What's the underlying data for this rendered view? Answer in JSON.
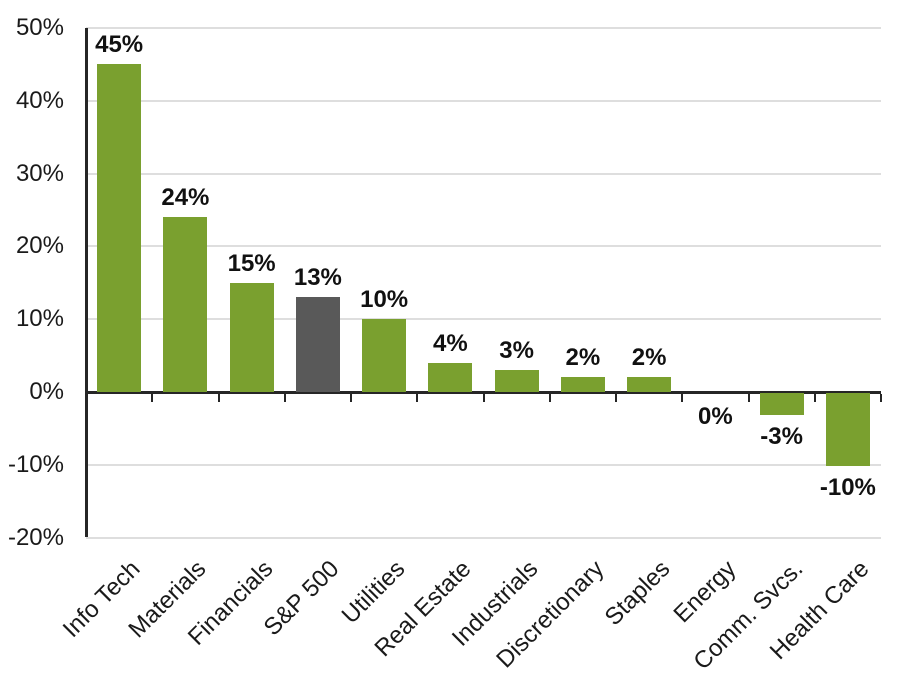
{
  "chart_data": {
    "type": "bar",
    "title": "",
    "xlabel": "",
    "ylabel": "",
    "categories": [
      "Info Tech",
      "Materials",
      "Financials",
      "S&P 500",
      "Utilities",
      "Real Estate",
      "Industrials",
      "Discretionary",
      "Staples",
      "Energy",
      "Comm. Svcs.",
      "Health Care"
    ],
    "values": [
      45,
      24,
      15,
      13,
      10,
      4,
      3,
      2,
      2,
      0,
      -3,
      -10
    ],
    "value_labels": [
      "45%",
      "24%",
      "15%",
      "13%",
      "10%",
      "4%",
      "3%",
      "2%",
      "2%",
      "0%",
      "-3%",
      "-10%"
    ],
    "highlight_category": "S&P 500",
    "highlight_index": 3,
    "ylim": [
      -20,
      50
    ],
    "ytick_values": [
      50,
      40,
      30,
      20,
      10,
      0,
      -10,
      -20
    ],
    "ytick_labels": [
      "50%",
      "40%",
      "30%",
      "20%",
      "10%",
      "0%",
      "-10%",
      "-20%"
    ],
    "grid": true,
    "legend": "none",
    "colors": {
      "bar": "#7AA02F",
      "highlight_bar": "#595959",
      "axis": "#262626",
      "gridline": "#DEDEDE",
      "text": "#1a1a1a"
    }
  }
}
